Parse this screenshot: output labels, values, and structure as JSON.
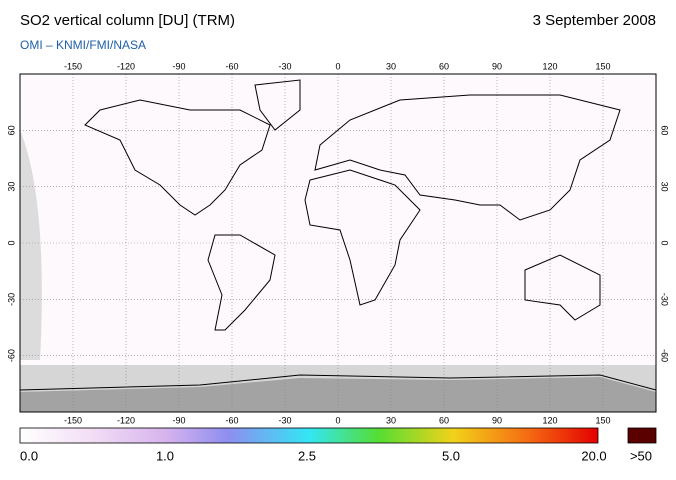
{
  "header": {
    "title": "SO2 vertical column [DU] (TRM)",
    "date": "3 September 2008",
    "credit": "OMI  –  KNMI/FMI/NASA"
  },
  "map": {
    "lon_ticks": [
      -150,
      -120,
      -90,
      -60,
      -30,
      0,
      30,
      60,
      90,
      120,
      150
    ],
    "lat_ticks": [
      60,
      30,
      0,
      -30,
      -60
    ],
    "lon_lim": [
      -180,
      180
    ],
    "lat_lim": [
      -90,
      90
    ]
  },
  "colorbar": {
    "labels": [
      "0.0",
      "1.0",
      "2.5",
      "5.0",
      "20.0"
    ],
    "overflow_label": ">50"
  }
}
